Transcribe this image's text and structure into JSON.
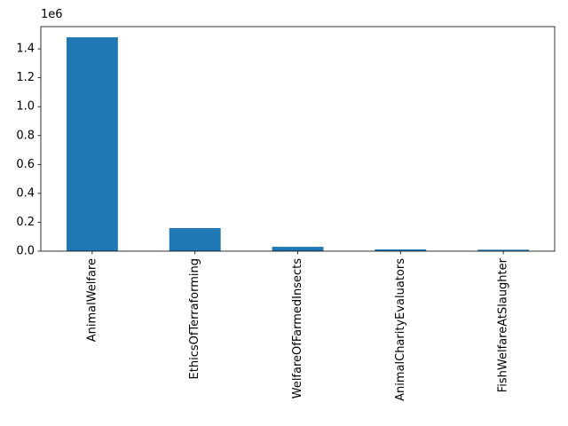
{
  "chart_data": {
    "type": "bar",
    "categories": [
      "AnimalWelfare",
      "EthicsOfTerraforming",
      "WelfareOfFarmedInsects",
      "AnimalCharityEvaluators",
      "FishWelfareAtSlaughter"
    ],
    "values": [
      1480000,
      160000,
      30000,
      12000,
      10000
    ],
    "color": "#1f77b4",
    "ylim": [
      0,
      1554000
    ],
    "yticks": [
      {
        "value": 0,
        "label": "0.0"
      },
      {
        "value": 200000,
        "label": "0.2"
      },
      {
        "value": 400000,
        "label": "0.4"
      },
      {
        "value": 600000,
        "label": "0.6"
      },
      {
        "value": 800000,
        "label": "0.8"
      },
      {
        "value": 1000000,
        "label": "1.0"
      },
      {
        "value": 1200000,
        "label": "1.2"
      },
      {
        "value": 1400000,
        "label": "1.4"
      }
    ],
    "y_offset_label": "1e6",
    "grid": false
  }
}
